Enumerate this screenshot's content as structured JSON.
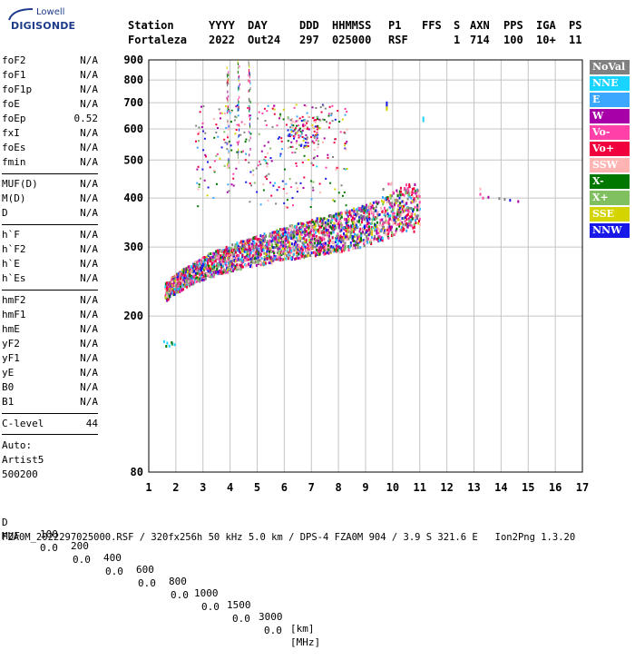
{
  "logo": {
    "top_text": "Lowell",
    "main_text": "DIGISONDE"
  },
  "header": {
    "labels": [
      "Station",
      "YYYY",
      "DAY",
      "DDD",
      "HHMMSS",
      "P1",
      "FFS",
      "S",
      "AXN",
      "PPS",
      "IGA",
      "PS"
    ],
    "values": [
      "Fortaleza",
      "2022",
      "Out24",
      "297",
      "025000",
      "RSF",
      "",
      "1",
      "714",
      "100",
      "10+",
      "11"
    ]
  },
  "params": {
    "group1": [
      {
        "name": "foF2",
        "value": "N/A"
      },
      {
        "name": "foF1",
        "value": "N/A"
      },
      {
        "name": "foF1p",
        "value": "N/A"
      },
      {
        "name": "foE",
        "value": "N/A"
      },
      {
        "name": "foEp",
        "value": "0.52"
      },
      {
        "name": "fxI",
        "value": "N/A"
      },
      {
        "name": "foEs",
        "value": "N/A"
      },
      {
        "name": "fmin",
        "value": "N/A"
      }
    ],
    "group2": [
      {
        "name": "MUF(D)",
        "value": "N/A"
      },
      {
        "name": "M(D)",
        "value": "N/A"
      },
      {
        "name": "D",
        "value": "N/A"
      }
    ],
    "group3": [
      {
        "name": "h`F",
        "value": "N/A"
      },
      {
        "name": "h`F2",
        "value": "N/A"
      },
      {
        "name": "h`E",
        "value": "N/A"
      },
      {
        "name": "h`Es",
        "value": "N/A"
      }
    ],
    "group4": [
      {
        "name": "hmF2",
        "value": "N/A"
      },
      {
        "name": "hmF1",
        "value": "N/A"
      },
      {
        "name": "hmE",
        "value": "N/A"
      },
      {
        "name": "yF2",
        "value": "N/A"
      },
      {
        "name": "yF1",
        "value": "N/A"
      },
      {
        "name": "yE",
        "value": "N/A"
      },
      {
        "name": "B0",
        "value": "N/A"
      },
      {
        "name": "B1",
        "value": "N/A"
      }
    ],
    "clevel": {
      "name": "C-level",
      "value": "44"
    },
    "auto": [
      "Auto:",
      "Artist5",
      "500200"
    ]
  },
  "legend": [
    {
      "label": "NoVal",
      "color": "#808080"
    },
    {
      "label": "NNE",
      "color": "#19d4ff"
    },
    {
      "label": "E",
      "color": "#3ba7ff"
    },
    {
      "label": "W",
      "color": "#a800a8"
    },
    {
      "label": "Vo-",
      "color": "#ff40a8"
    },
    {
      "label": "Vo+",
      "color": "#f0003c"
    },
    {
      "label": "SSW",
      "color": "#ffb4b4"
    },
    {
      "label": "X-",
      "color": "#007800"
    },
    {
      "label": "X+",
      "color": "#80c060"
    },
    {
      "label": "SSE",
      "color": "#d4d400"
    },
    {
      "label": "NNW",
      "color": "#1818e8"
    }
  ],
  "chart_data": {
    "type": "scatter",
    "title": "",
    "xlabel": "",
    "ylabel": "",
    "xlim": [
      1,
      17
    ],
    "ylim": [
      80,
      900
    ],
    "x_ticks": [
      1,
      2,
      3,
      4,
      5,
      6,
      7,
      8,
      9,
      10,
      11,
      12,
      13,
      14,
      15,
      16,
      17
    ],
    "y_ticks": [
      80,
      200,
      300,
      400,
      500,
      600,
      700,
      800,
      900
    ],
    "y_scale": "log",
    "grid": true,
    "trace": {
      "freq_mhz": [
        1.6,
        2.0,
        2.5,
        3.0,
        3.5,
        4.0,
        4.5,
        5.0,
        5.5,
        6.0,
        6.5,
        7.0,
        7.5,
        8.0,
        8.5,
        9.0,
        9.5,
        10.0,
        10.5,
        11.0
      ],
      "height_km": [
        228,
        240,
        252,
        262,
        270,
        277,
        283,
        289,
        294,
        300,
        305,
        310,
        315,
        320,
        326,
        333,
        342,
        355,
        368,
        378
      ]
    }
  },
  "footer": {
    "d_label": "D",
    "d_values": [
      "100",
      "200",
      "400",
      "600",
      "800",
      "1000",
      "1500",
      "3000",
      "[km]"
    ],
    "muf_label": "MUF",
    "muf_values": [
      "0.0",
      "0.0",
      "0.0",
      "0.0",
      "0.0",
      "0.0",
      "0.0",
      "0.0",
      "[MHz]"
    ],
    "info": "FZA0M_2022297025000.RSF / 320fx256h 50 kHz 5.0 km / DPS-4 FZA0M 904 / 3.9 S 321.6 E   Ion2Png 1.3.20"
  }
}
